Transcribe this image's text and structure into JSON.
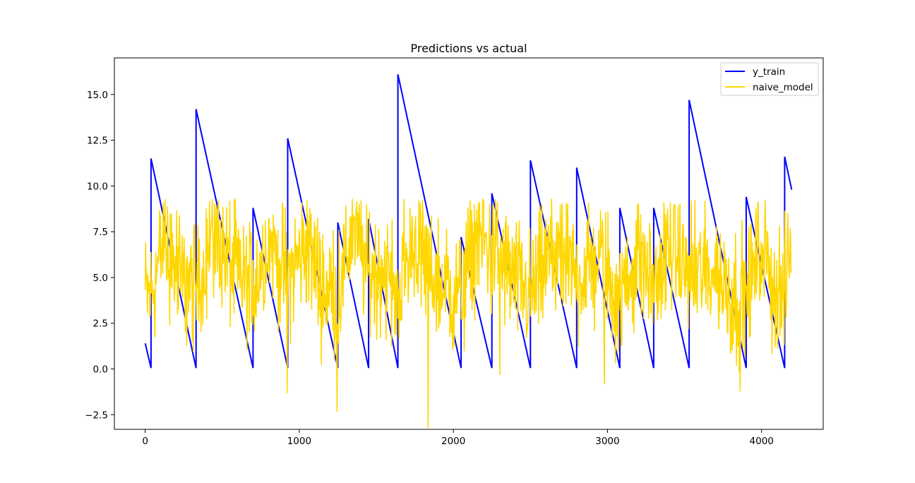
{
  "chart_data": {
    "type": "line",
    "title": "Predictions vs actual",
    "xlabel": "",
    "ylabel": "",
    "xlim": [
      -200,
      4400
    ],
    "ylim": [
      -3.3,
      17.0
    ],
    "xticks": [
      0,
      1000,
      2000,
      3000,
      4000
    ],
    "xtick_labels": [
      "0",
      "1000",
      "2000",
      "3000",
      "4000"
    ],
    "yticks": [
      -2.5,
      0.0,
      2.5,
      5.0,
      7.5,
      10.0,
      12.5,
      15.0
    ],
    "ytick_labels": [
      "−2.5",
      "0.0",
      "2.5",
      "5.0",
      "7.5",
      "10.0",
      "12.5",
      "15.0"
    ],
    "grid": false,
    "legend_position": "top-right",
    "series": [
      {
        "name": "y_train",
        "color": "#0000ff",
        "x": [
          0,
          38,
          38,
          330,
          330,
          700,
          700,
          925,
          925,
          1250,
          1250,
          1450,
          1450,
          1640,
          1640,
          2050,
          2050,
          2250,
          2250,
          2500,
          2500,
          2800,
          2800,
          3080,
          3080,
          3300,
          3300,
          3530,
          3530,
          3900,
          3900,
          4150,
          4150,
          4195
        ],
        "y": [
          1.4,
          0.05,
          11.5,
          0.05,
          14.2,
          0.05,
          8.8,
          0.05,
          12.6,
          0.05,
          8.0,
          0.05,
          8.2,
          0.05,
          16.1,
          0.05,
          7.2,
          0.05,
          9.6,
          0.05,
          11.4,
          0.05,
          11.0,
          0.05,
          8.8,
          0.05,
          8.8,
          0.05,
          14.7,
          0.05,
          9.4,
          0.05,
          11.6,
          9.8
        ]
      },
      {
        "name": "naive_model",
        "color": "#ffd700",
        "envelope": {
          "x": [
            0,
            38,
            120,
            220,
            330,
            450,
            560,
            700,
            810,
            925,
            1050,
            1150,
            1250,
            1350,
            1450,
            1550,
            1640,
            1750,
            1850,
            1950,
            2050,
            2150,
            2250,
            2380,
            2500,
            2650,
            2800,
            2950,
            3080,
            3200,
            3300,
            3420,
            3530,
            3700,
            3800,
            3900,
            4000,
            4080,
            4150,
            4200
          ],
          "center": [
            4.0,
            4.0,
            7.0,
            5.0,
            4.5,
            7.5,
            5.5,
            4.5,
            7.0,
            5.0,
            6.8,
            4.5,
            4.0,
            7.8,
            5.2,
            5.5,
            4.0,
            7.2,
            5.0,
            4.5,
            4.0,
            7.3,
            6.5,
            5.0,
            4.0,
            6.5,
            5.0,
            6.0,
            3.5,
            6.5,
            4.5,
            7.0,
            5.0,
            5.5,
            4.0,
            4.0,
            6.8,
            4.5,
            4.0,
            7.5
          ]
        },
        "min_value": -3.2,
        "max_value": 9.3
      }
    ]
  }
}
